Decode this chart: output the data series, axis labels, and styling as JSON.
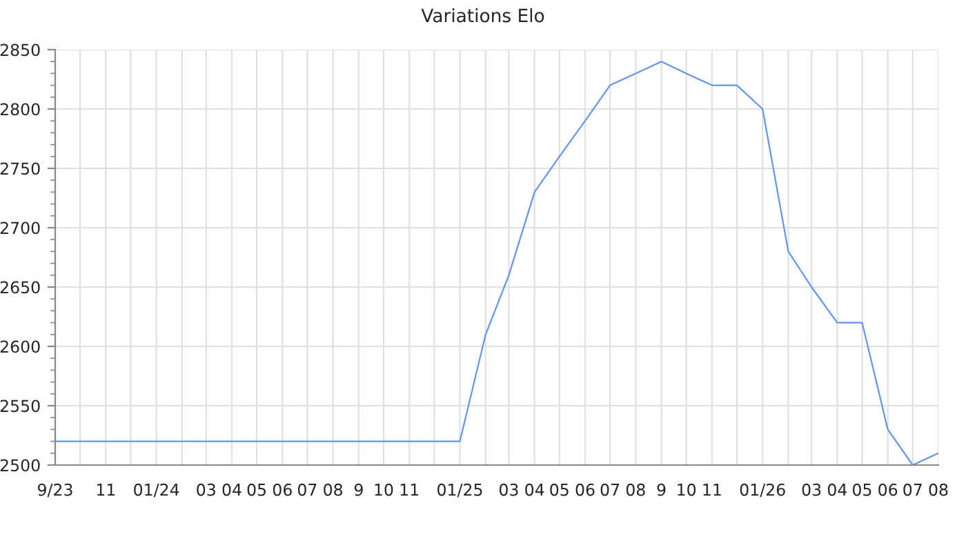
{
  "chart_data": {
    "type": "line",
    "title": "Variations Elo",
    "x": [
      "2023-09",
      "2023-10",
      "2023-11",
      "2023-12",
      "2024-01",
      "2024-02",
      "2024-03",
      "2024-04",
      "2024-05",
      "2024-06",
      "2024-07",
      "2024-08",
      "2024-09",
      "2024-10",
      "2024-11",
      "2024-12",
      "2025-01",
      "2025-02",
      "2025-03",
      "2025-04",
      "2025-05",
      "2025-06",
      "2025-07",
      "2025-08",
      "2025-09",
      "2025-10",
      "2025-11",
      "2025-12",
      "2026-01",
      "2026-02",
      "2026-03",
      "2026-04",
      "2026-05",
      "2026-06",
      "2026-07",
      "2026-08"
    ],
    "series": [
      {
        "color": "#6495ed",
        "values": [
          2520,
          2520,
          2520,
          2520,
          2520,
          2520,
          2520,
          2520,
          2520,
          2520,
          2520,
          2520,
          2520,
          2520,
          2520,
          2520,
          2520,
          2610,
          2660,
          2730,
          2760,
          2790,
          2820,
          2830,
          2840,
          2830,
          2820,
          2820,
          2800,
          2680,
          2650,
          2620,
          2620,
          2530,
          2500,
          2510
        ]
      }
    ],
    "xlim": [
      "2023-09",
      "2026-08"
    ],
    "xticks": [
      {
        "value": "2023-09",
        "label": "9/23"
      },
      {
        "value": "2023-10",
        "label": null
      },
      {
        "value": "2023-11",
        "label": "11"
      },
      {
        "value": "2023-12",
        "label": null
      },
      {
        "value": "2024-01",
        "label": "01/24"
      },
      {
        "value": "2024-02",
        "label": null
      },
      {
        "value": "2024-03",
        "label": "03"
      },
      {
        "value": "2024-04",
        "label": "04"
      },
      {
        "value": "2024-05",
        "label": "05"
      },
      {
        "value": "2024-06",
        "label": "06"
      },
      {
        "value": "2024-07",
        "label": "07"
      },
      {
        "value": "2024-08",
        "label": "08"
      },
      {
        "value": "2024-09",
        "label": "9"
      },
      {
        "value": "2024-10",
        "label": "10"
      },
      {
        "value": "2024-11",
        "label": "11"
      },
      {
        "value": "2024-12",
        "label": null
      },
      {
        "value": "2025-01",
        "label": "01/25"
      },
      {
        "value": "2025-02",
        "label": null
      },
      {
        "value": "2025-03",
        "label": "03"
      },
      {
        "value": "2025-04",
        "label": "04"
      },
      {
        "value": "2025-05",
        "label": "05"
      },
      {
        "value": "2025-06",
        "label": "06"
      },
      {
        "value": "2025-07",
        "label": "07"
      },
      {
        "value": "2025-08",
        "label": "08"
      },
      {
        "value": "2025-09",
        "label": "9"
      },
      {
        "value": "2025-10",
        "label": "10"
      },
      {
        "value": "2025-11",
        "label": "11"
      },
      {
        "value": "2025-12",
        "label": null
      },
      {
        "value": "2026-01",
        "label": "01/26"
      },
      {
        "value": "2026-02",
        "label": null
      },
      {
        "value": "2026-03",
        "label": "03"
      },
      {
        "value": "2026-04",
        "label": "04"
      },
      {
        "value": "2026-05",
        "label": "05"
      },
      {
        "value": "2026-06",
        "label": "06"
      },
      {
        "value": "2026-07",
        "label": "07"
      },
      {
        "value": "2026-08",
        "label": "08"
      }
    ],
    "ylim": [
      2500,
      2850
    ],
    "yticks": [
      2500,
      2550,
      2600,
      2650,
      2700,
      2750,
      2800,
      2850
    ],
    "grid": true,
    "legend": false,
    "marker": "none",
    "line_style": "solid"
  }
}
